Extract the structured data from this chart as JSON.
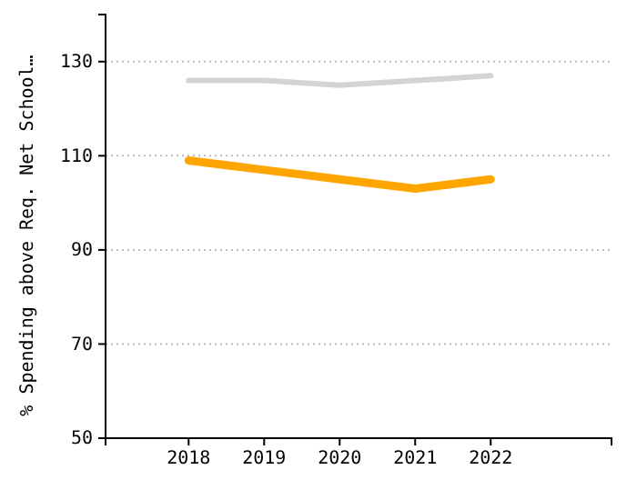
{
  "chart_data": {
    "type": "line",
    "ylabel": "% Spending above Req. Net School…",
    "x": [
      2018,
      2019,
      2020,
      2021,
      2022
    ],
    "xlim": [
      2016.9,
      2023.6
    ],
    "xticks": [
      2018,
      2019,
      2020,
      2021,
      2022
    ],
    "ylim": [
      50,
      140
    ],
    "yticks": [
      50,
      70,
      90,
      110,
      130
    ],
    "grid": "y",
    "marker": "none",
    "line_style": "solid",
    "series": [
      {
        "color": "#d3d3d3",
        "values": [
          126,
          126,
          125,
          126,
          127
        ]
      },
      {
        "color": "#ffa500",
        "values": [
          109,
          107,
          105,
          103,
          105
        ]
      }
    ]
  }
}
